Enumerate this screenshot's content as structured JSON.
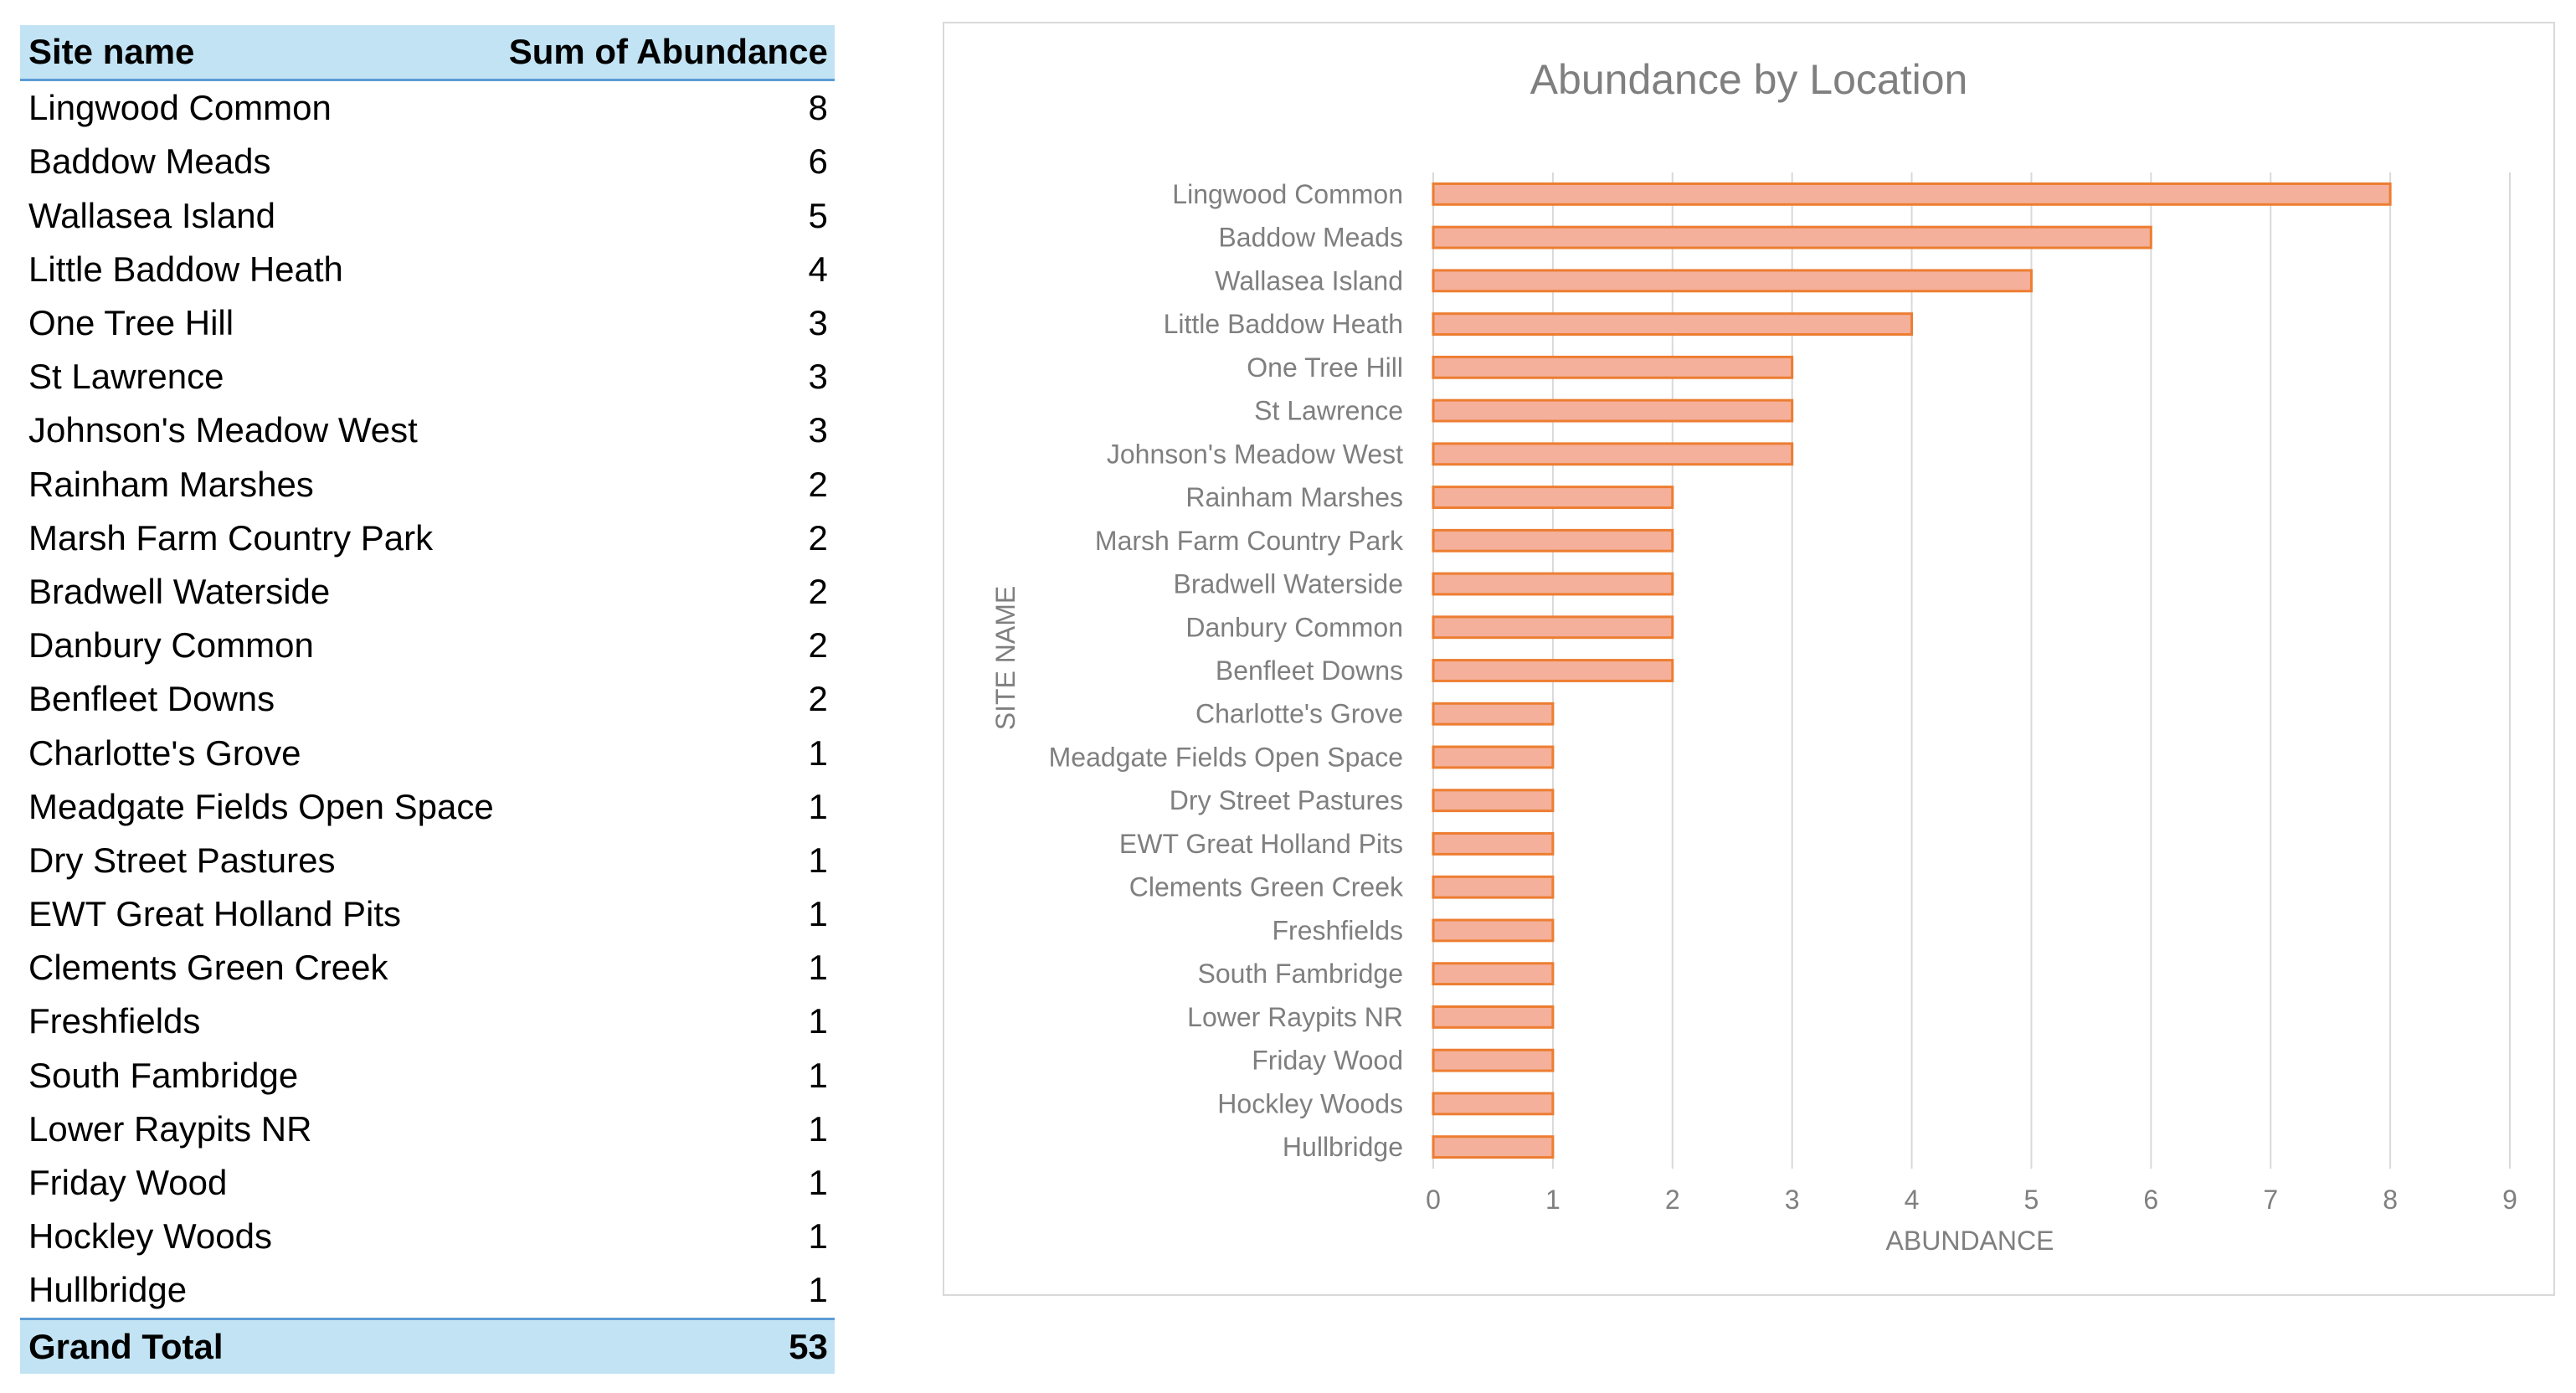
{
  "table": {
    "header_site": "Site name",
    "header_sum": "Sum of Abundance",
    "rows": [
      {
        "site": "Lingwood Common",
        "value": "8"
      },
      {
        "site": "Baddow Meads",
        "value": "6"
      },
      {
        "site": "Wallasea Island",
        "value": "5"
      },
      {
        "site": "Little Baddow Heath",
        "value": "4"
      },
      {
        "site": "One Tree Hill",
        "value": "3"
      },
      {
        "site": "St Lawrence",
        "value": "3"
      },
      {
        "site": "Johnson's Meadow West",
        "value": "3"
      },
      {
        "site": "Rainham Marshes",
        "value": "2"
      },
      {
        "site": "Marsh Farm Country Park",
        "value": "2"
      },
      {
        "site": "Bradwell Waterside",
        "value": "2"
      },
      {
        "site": "Danbury Common",
        "value": "2"
      },
      {
        "site": "Benfleet Downs",
        "value": "2"
      },
      {
        "site": "Charlotte's Grove",
        "value": "1"
      },
      {
        "site": "Meadgate Fields Open Space",
        "value": "1"
      },
      {
        "site": "Dry Street Pastures",
        "value": "1"
      },
      {
        "site": "EWT Great Holland Pits",
        "value": "1"
      },
      {
        "site": "Clements Green Creek",
        "value": "1"
      },
      {
        "site": "Freshfields",
        "value": "1"
      },
      {
        "site": "South Fambridge",
        "value": "1"
      },
      {
        "site": "Lower Raypits NR",
        "value": "1"
      },
      {
        "site": "Friday Wood",
        "value": "1"
      },
      {
        "site": "Hockley Woods",
        "value": "1"
      },
      {
        "site": "Hullbridge",
        "value": "1"
      }
    ],
    "total_label": "Grand Total",
    "total_value": "53"
  },
  "chart_data": {
    "type": "bar",
    "orientation": "horizontal",
    "title": "Abundance by Location",
    "xlabel": "ABUNDANCE",
    "ylabel": "SITE NAME",
    "categories": [
      "Lingwood Common",
      "Baddow Meads",
      "Wallasea Island",
      "Little Baddow Heath",
      "One Tree Hill",
      "St Lawrence",
      "Johnson's Meadow West",
      "Rainham Marshes",
      "Marsh Farm Country Park",
      "Bradwell Waterside",
      "Danbury Common",
      "Benfleet Downs",
      "Charlotte's Grove",
      "Meadgate Fields Open Space",
      "Dry Street Pastures",
      "EWT Great Holland Pits",
      "Clements Green Creek",
      "Freshfields",
      "South Fambridge",
      "Lower Raypits NR",
      "Friday Wood",
      "Hockley Woods",
      "Hullbridge"
    ],
    "values": [
      8,
      6,
      5,
      4,
      3,
      3,
      3,
      2,
      2,
      2,
      2,
      2,
      1,
      1,
      1,
      1,
      1,
      1,
      1,
      1,
      1,
      1,
      1
    ],
    "xlim": [
      0,
      9
    ],
    "xticks": [
      "0",
      "1",
      "2",
      "3",
      "4",
      "5",
      "6",
      "7",
      "8",
      "9"
    ],
    "grid": true,
    "legend": "none",
    "colors": {
      "bar_fill": "#f4b09a",
      "bar_stroke": "#ed7d31"
    }
  }
}
